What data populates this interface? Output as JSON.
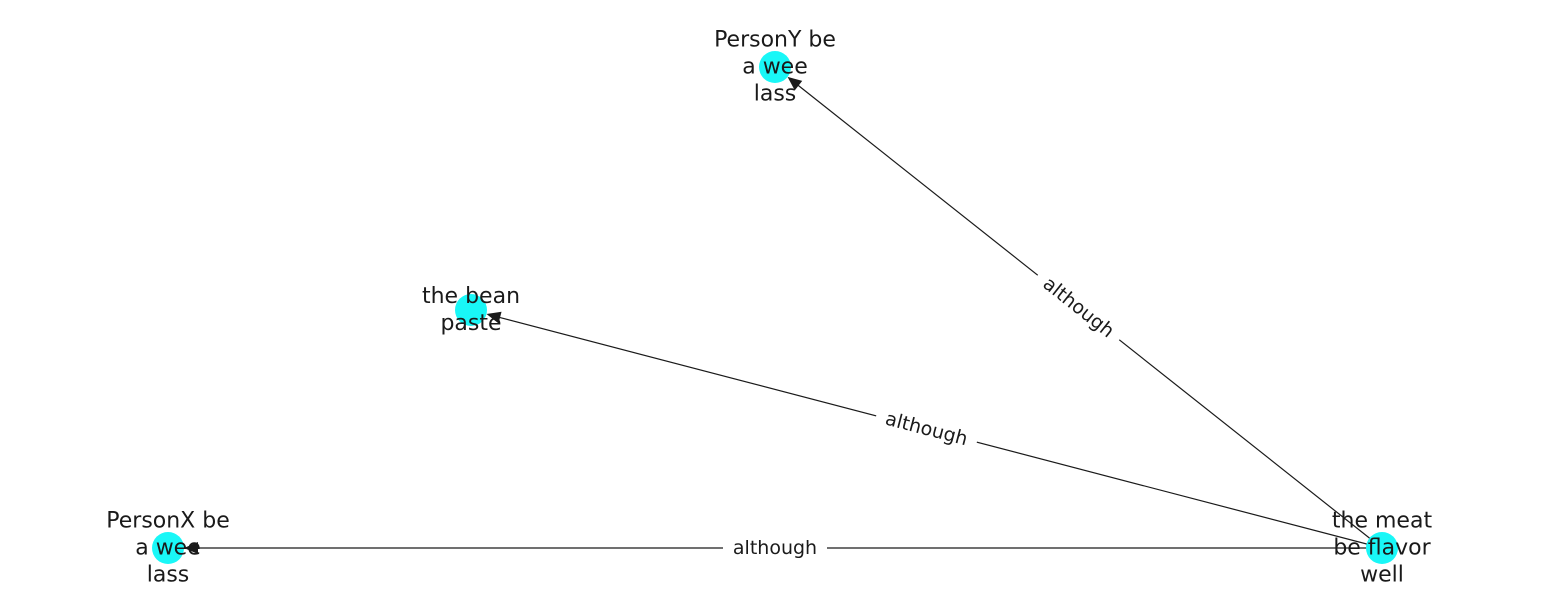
{
  "nodes": [
    {
      "id": "n_meat",
      "lines": [
        "the meat",
        "be flavor",
        "well"
      ]
    },
    {
      "id": "n_personY",
      "lines": [
        "PersonY be",
        "a wee",
        "lass"
      ]
    },
    {
      "id": "n_bean",
      "lines": [
        "the bean",
        "paste"
      ]
    },
    {
      "id": "n_personX",
      "lines": [
        "PersonX be",
        "a wee",
        "lass"
      ]
    }
  ],
  "edges": [
    {
      "from": "n_meat",
      "to": "n_personY",
      "label": "although"
    },
    {
      "from": "n_meat",
      "to": "n_bean",
      "label": "although"
    },
    {
      "from": "n_meat",
      "to": "n_personX",
      "label": "although"
    }
  ],
  "colors": {
    "node": "#19f7f7",
    "edge": "#1a1a1a",
    "text": "#1a1a1a"
  }
}
